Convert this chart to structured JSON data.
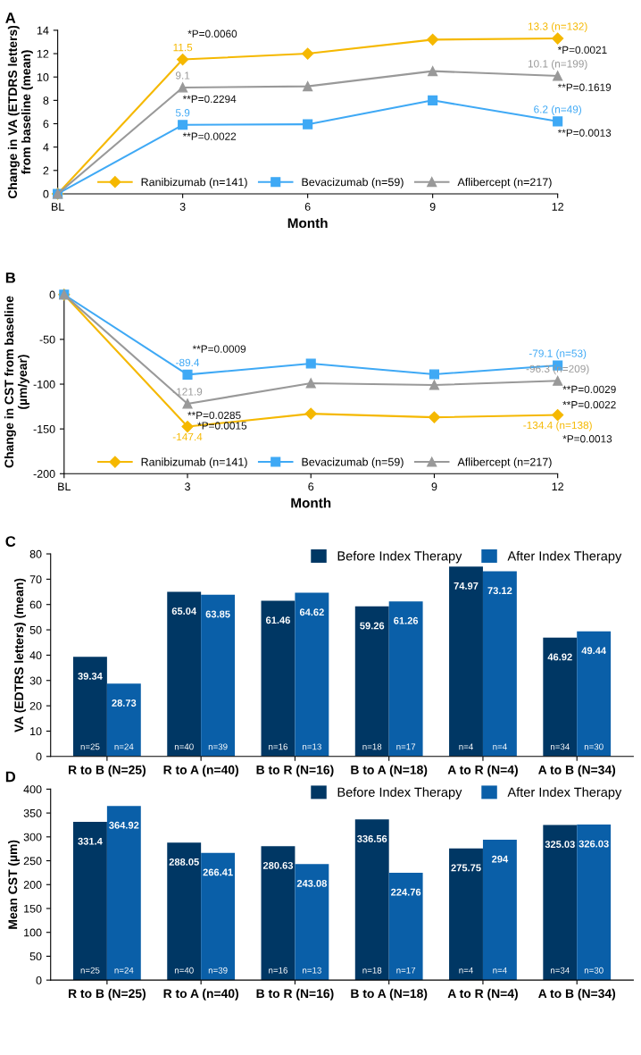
{
  "chart_data": [
    {
      "type": "line",
      "title": "A",
      "xlabel": "Month",
      "ylabel": "Change in VA (ETDRS letters)\nfrom baseline (mean)",
      "x": [
        0,
        3,
        6,
        9,
        12
      ],
      "xlim": [
        0,
        12
      ],
      "xticks": [
        {
          "value": 0,
          "label": "BL"
        },
        3,
        6,
        9,
        12
      ],
      "ylim": [
        0,
        14
      ],
      "yticks": [
        0,
        2,
        4,
        6,
        8,
        10,
        12,
        14
      ],
      "grid": false,
      "legend": "bottom right",
      "line_style": "solid",
      "series": [
        {
          "name": "Ranibizumab (n=141)",
          "color": "#f5b800",
          "marker": "diamond",
          "values": [
            0,
            11.5,
            12.0,
            13.2,
            13.3
          ],
          "value_labels": [
            null,
            "11.5",
            null,
            null,
            "13.3 (n=132)"
          ]
        },
        {
          "name": "Bevacizumab (n=59)",
          "color": "#3fa9f5",
          "marker": "square",
          "values": [
            0,
            5.9,
            5.95,
            8.0,
            6.2
          ],
          "value_labels": [
            null,
            "5.9",
            null,
            null,
            "6.2 (n=49)"
          ]
        },
        {
          "name": "Aflibercept (n=217)",
          "color": "#999999",
          "marker": "triangle",
          "values": [
            0,
            9.1,
            9.2,
            10.5,
            10.1
          ],
          "value_labels": [
            null,
            "9.1",
            null,
            null,
            "10.1 (n=199)"
          ]
        }
      ],
      "annotations": [
        {
          "text": "*P=0.0060",
          "x": 3,
          "y": 11.5
        },
        {
          "text": "**P=0.2294",
          "x": 3,
          "y": 9.1
        },
        {
          "text": "**P=0.0022",
          "x": 3,
          "y": 5.9
        },
        {
          "text": "*P=0.0021",
          "x": 12,
          "y": 13.3
        },
        {
          "text": "**P=0.1619",
          "x": 12,
          "y": 10.1
        },
        {
          "text": "**P=0.0013",
          "x": 12,
          "y": 6.2
        }
      ]
    },
    {
      "type": "line",
      "title": "B",
      "xlabel": "Month",
      "ylabel": "Change in CST from baseline\n(µm/year)",
      "x": [
        0,
        3,
        6,
        9,
        12
      ],
      "xlim": [
        0,
        12
      ],
      "xticks": [
        {
          "value": 0,
          "label": "BL"
        },
        3,
        6,
        9,
        12
      ],
      "ylim": [
        -200,
        5
      ],
      "yticks": [
        -200,
        -150,
        -100,
        -50,
        0
      ],
      "grid": false,
      "legend": "bottom right",
      "line_style": "solid",
      "series": [
        {
          "name": "Ranibizumab (n=141)",
          "color": "#f5b800",
          "marker": "diamond",
          "values": [
            0,
            -147.4,
            -133,
            -137,
            -134.4
          ],
          "value_labels": [
            null,
            "-147.4",
            null,
            null,
            "-134.4 (n=138)"
          ]
        },
        {
          "name": "Bevacizumab (n=59)",
          "color": "#3fa9f5",
          "marker": "square",
          "values": [
            0,
            -89.4,
            -77,
            -89,
            -79.1
          ],
          "value_labels": [
            null,
            "-89.4",
            null,
            null,
            "-79.1 (n=53)"
          ]
        },
        {
          "name": "Aflibercept (n=217)",
          "color": "#999999",
          "marker": "triangle",
          "values": [
            0,
            -121.9,
            -99,
            -101,
            -96.3
          ],
          "value_labels": [
            null,
            "-121.9",
            null,
            null,
            "-96.3 (n=209)"
          ]
        }
      ],
      "annotations": [
        {
          "text": "**P=0.0009",
          "x": 3,
          "y": -89.4
        },
        {
          "text": "**P=0.0285",
          "x": 3,
          "y": -121.9
        },
        {
          "text": "*P=0.0015",
          "x": 3,
          "y": -147.4
        },
        {
          "text": "**P=0.0029",
          "x": 12,
          "y": -79.1
        },
        {
          "text": "**P=0.0022",
          "x": 12,
          "y": -96.3
        },
        {
          "text": "*P=0.0013",
          "x": 12,
          "y": -134.4
        }
      ]
    },
    {
      "type": "bar",
      "title": "C",
      "ylabel": "VA (EDTRS letters) (mean)",
      "categories": [
        "R to B (N=25)",
        "R to A (n=40)",
        "B to R (N=16)",
        "B to A (N=18)",
        "A to R (N=4)",
        "A to B (N=34)"
      ],
      "ylim": [
        0,
        80
      ],
      "yticks": [
        0,
        10,
        20,
        30,
        40,
        50,
        60,
        70,
        80
      ],
      "grid": false,
      "legend": "top right",
      "data_labels": true,
      "series": [
        {
          "name": "Before Index Therapy",
          "color": "#003764",
          "values": [
            39.34,
            65.04,
            61.46,
            59.26,
            74.97,
            46.92
          ]
        },
        {
          "name": "After Index Therapy",
          "color": "#0a5fa8",
          "values": [
            28.73,
            63.85,
            64.62,
            61.26,
            73.12,
            49.44
          ]
        }
      ],
      "annotations": [
        {
          "text": "n=25",
          "x": "R to B (N=25)",
          "y": 0
        },
        {
          "text": "n=24",
          "x": "R to B (N=25)",
          "y": 0
        },
        {
          "text": "n=40",
          "x": "R to A (n=40)",
          "y": 0
        },
        {
          "text": "n=39",
          "x": "R to A (n=40)",
          "y": 0
        },
        {
          "text": "n=16",
          "x": "B to R (N=16)",
          "y": 0
        },
        {
          "text": "n=13",
          "x": "B to R (N=16)",
          "y": 0
        },
        {
          "text": "n=18",
          "x": "B to A (N=18)",
          "y": 0
        },
        {
          "text": "n=17",
          "x": "B to A (N=18)",
          "y": 0
        },
        {
          "text": "n=4",
          "x": "A to R (N=4)",
          "y": 0
        },
        {
          "text": "n=4",
          "x": "A to R (N=4)",
          "y": 0
        },
        {
          "text": "n=34",
          "x": "A to B (N=34)",
          "y": 0
        },
        {
          "text": "n=30",
          "x": "A to B (N=34)",
          "y": 0
        }
      ]
    },
    {
      "type": "bar",
      "title": "D",
      "ylabel": "Mean CST (µm)",
      "categories": [
        "R to B (N=25)",
        "R to A (n=40)",
        "B to R (N=16)",
        "B to A (N=18)",
        "A to R (N=4)",
        "A to B (N=34)"
      ],
      "ylim": [
        0,
        400
      ],
      "yticks": [
        0,
        50,
        100,
        150,
        200,
        250,
        300,
        350,
        400
      ],
      "grid": false,
      "legend": "top right",
      "data_labels": true,
      "series": [
        {
          "name": "Before Index Therapy",
          "color": "#003764",
          "values": [
            331.4,
            288.05,
            280.63,
            336.56,
            275.75,
            325.03
          ]
        },
        {
          "name": "After Index Therapy",
          "color": "#0a5fa8",
          "values": [
            364.92,
            266.41,
            243.08,
            224.76,
            294,
            326.03
          ]
        }
      ],
      "annotations": [
        {
          "text": "n=25",
          "x": "R to B (N=25)",
          "y": 0
        },
        {
          "text": "n=24",
          "x": "R to B (N=25)",
          "y": 0
        },
        {
          "text": "n=40",
          "x": "R to A (n=40)",
          "y": 0
        },
        {
          "text": "n=39",
          "x": "R to A (n=40)",
          "y": 0
        },
        {
          "text": "n=16",
          "x": "B to R (N=16)",
          "y": 0
        },
        {
          "text": "n=13",
          "x": "B to R (N=16)",
          "y": 0
        },
        {
          "text": "n=18",
          "x": "B to A (N=18)",
          "y": 0
        },
        {
          "text": "n=17",
          "x": "B to A (N=18)",
          "y": 0
        },
        {
          "text": "n=4",
          "x": "A to R (N=4)",
          "y": 0
        },
        {
          "text": "n=4",
          "x": "A to R (N=4)",
          "y": 0
        },
        {
          "text": "n=34",
          "x": "A to B (N=34)",
          "y": 0
        },
        {
          "text": "n=30",
          "x": "A to B (N=34)",
          "y": 0
        }
      ]
    }
  ]
}
